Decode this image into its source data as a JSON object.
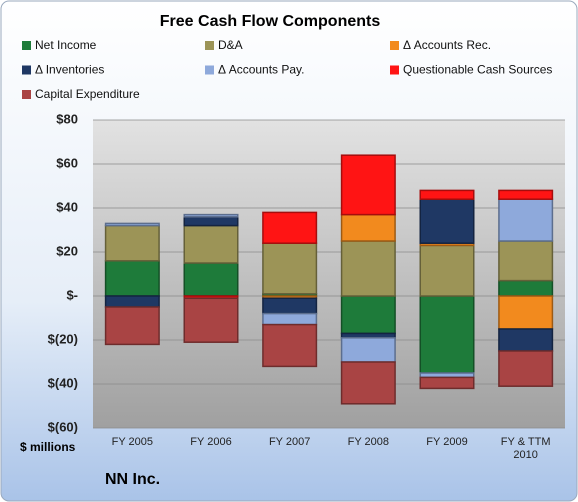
{
  "chart_data": {
    "type": "bar",
    "stacked": true,
    "title": "Free Cash Flow Components",
    "y_label": "$ millions",
    "footer": "NN Inc.",
    "categories": [
      "FY 2005",
      "FY 2006",
      "FY 2007",
      "FY 2008",
      "FY 2009",
      "FY & TTM 2010"
    ],
    "series": [
      {
        "name": "Net Income",
        "color": "#1e7b3a",
        "values": [
          16,
          15,
          1,
          -17,
          -35,
          7
        ]
      },
      {
        "name": "D&A",
        "color": "#9c9457",
        "values": [
          16,
          17,
          23,
          25,
          23,
          18
        ]
      },
      {
        "name": "Δ Accounts Rec.",
        "color": "#f28a1e",
        "values": [
          null,
          null,
          -1,
          12,
          1,
          -15
        ]
      },
      {
        "name": "Δ Inventories",
        "color": "#1f3864",
        "values": [
          -5,
          4,
          -7,
          -2,
          20,
          -10
        ]
      },
      {
        "name": "Δ Accounts Pay.",
        "color": "#8ea9db",
        "values": [
          1,
          1,
          -5,
          -11,
          -2,
          19
        ]
      },
      {
        "name": "Questionable Cash Sources",
        "color": "#ff1414",
        "values": [
          null,
          -1,
          14,
          27,
          4,
          4
        ]
      },
      {
        "name": "Capital Expenditure",
        "color": "#a94444",
        "values": [
          -17,
          -20,
          -19,
          -19,
          -5,
          -16
        ]
      }
    ],
    "ylim": [
      -60,
      80
    ],
    "yticks": [
      {
        "value": -60,
        "label": "$(60)"
      },
      {
        "value": -40,
        "label": "$(40)"
      },
      {
        "value": -20,
        "label": "$(20)"
      },
      {
        "value": 0,
        "label": "$-"
      },
      {
        "value": 20,
        "label": "$20"
      },
      {
        "value": 40,
        "label": "$40"
      },
      {
        "value": 60,
        "label": "$60"
      },
      {
        "value": 80,
        "label": "$80"
      }
    ],
    "grid": true
  }
}
